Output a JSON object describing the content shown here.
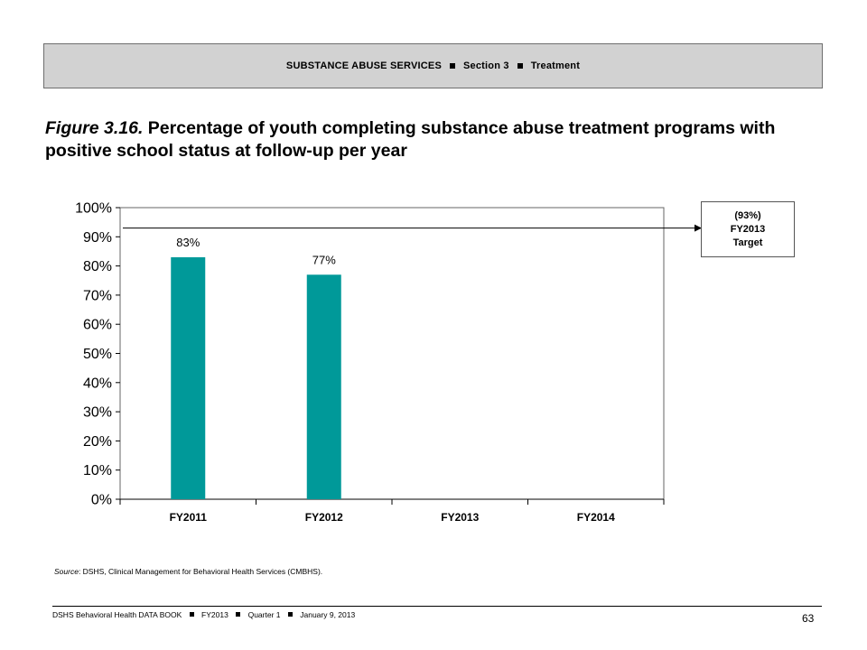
{
  "header": {
    "parts": [
      "SUBSTANCE ABUSE SERVICES",
      "Section 3",
      "Treatment"
    ]
  },
  "figure": {
    "label": "Figure 3.16.",
    "title": "Percentage of youth completing substance abuse treatment programs with positive school status at follow-up per year"
  },
  "target_box": {
    "value": "(93%)",
    "year": "FY2013",
    "label": "Target"
  },
  "chart_data": {
    "type": "bar",
    "categories": [
      "FY2011",
      "FY2012",
      "FY2013",
      "FY2014"
    ],
    "values": [
      83,
      77,
      null,
      null
    ],
    "data_labels": [
      "83%",
      "77%",
      "",
      ""
    ],
    "ylim": [
      0,
      100
    ],
    "yticks": [
      0,
      10,
      20,
      30,
      40,
      50,
      60,
      70,
      80,
      90,
      100
    ],
    "ytick_labels": [
      "0%",
      "10%",
      "20%",
      "30%",
      "40%",
      "50%",
      "60%",
      "70%",
      "80%",
      "90%",
      "100%"
    ],
    "target_line": 93,
    "bar_color": "#009999",
    "title": "",
    "xlabel": "",
    "ylabel": "",
    "grid": false
  },
  "source": {
    "label": "Source",
    "text": ": DSHS, Clinical Management for Behavioral Health Services (CMBHS)."
  },
  "footer": {
    "parts": [
      "DSHS Behavioral Health DATA BOOK",
      "FY2013",
      "Quarter 1",
      "January 9, 2013"
    ],
    "page_number": "63"
  }
}
